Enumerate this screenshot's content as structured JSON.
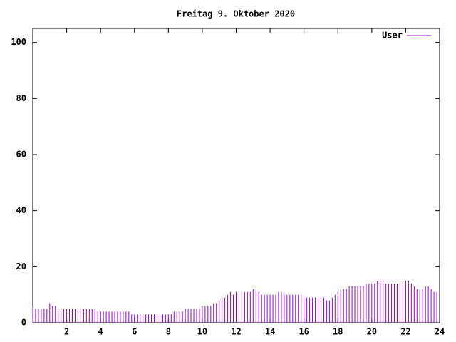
{
  "chart_data": {
    "type": "impulse",
    "title": "Freitag 9. Oktober 2020",
    "x": [
      0,
      0.167,
      0.333,
      0.5,
      0.667,
      0.833,
      1,
      1.167,
      1.333,
      1.5,
      1.667,
      1.833,
      2,
      2.167,
      2.333,
      2.5,
      2.667,
      2.833,
      3,
      3.167,
      3.333,
      3.5,
      3.667,
      3.833,
      4,
      4.167,
      4.333,
      4.5,
      4.667,
      4.833,
      5,
      5.167,
      5.333,
      5.5,
      5.667,
      5.833,
      6,
      6.167,
      6.333,
      6.5,
      6.667,
      6.833,
      7,
      7.167,
      7.333,
      7.5,
      7.667,
      7.833,
      8,
      8.167,
      8.333,
      8.5,
      8.667,
      8.833,
      9,
      9.167,
      9.333,
      9.5,
      9.667,
      9.833,
      10,
      10.167,
      10.333,
      10.5,
      10.667,
      10.833,
      11,
      11.167,
      11.333,
      11.5,
      11.667,
      11.833,
      12,
      12.167,
      12.333,
      12.5,
      12.667,
      12.833,
      13,
      13.167,
      13.333,
      13.5,
      13.667,
      13.833,
      14,
      14.167,
      14.333,
      14.5,
      14.667,
      14.833,
      15,
      15.167,
      15.333,
      15.5,
      15.667,
      15.833,
      16,
      16.167,
      16.333,
      16.5,
      16.667,
      16.833,
      17,
      17.167,
      17.333,
      17.5,
      17.667,
      17.833,
      18,
      18.167,
      18.333,
      18.5,
      18.667,
      18.833,
      19,
      19.167,
      19.333,
      19.5,
      19.667,
      19.833,
      20,
      20.167,
      20.333,
      20.5,
      20.667,
      20.833,
      21,
      21.167,
      21.333,
      21.5,
      21.667,
      21.833,
      22,
      22.167,
      22.333,
      22.5,
      22.667,
      22.833,
      23,
      23.167,
      23.333,
      23.5,
      23.667,
      23.833
    ],
    "series": [
      {
        "name": "User",
        "color": "#9400d3",
        "values": [
          6,
          5,
          5,
          5,
          5,
          5,
          7,
          6,
          6,
          5,
          5,
          5,
          5,
          5,
          5,
          5,
          5,
          5,
          5,
          5,
          5,
          5,
          5,
          4,
          4,
          4,
          4,
          4,
          4,
          4,
          4,
          4,
          4,
          4,
          4,
          3,
          3,
          3,
          3,
          3,
          3,
          3,
          3,
          3,
          3,
          3,
          3,
          3,
          3,
          3,
          4,
          4,
          4,
          4,
          5,
          5,
          5,
          5,
          5,
          5,
          6,
          6,
          6,
          6,
          7,
          7,
          8,
          9,
          9,
          10,
          11,
          10,
          11,
          11,
          11,
          11,
          11,
          11,
          12,
          12,
          11,
          10,
          10,
          10,
          10,
          10,
          10,
          11,
          11,
          10,
          10,
          10,
          10,
          10,
          10,
          10,
          9,
          9,
          9,
          9,
          9,
          9,
          9,
          9,
          8,
          8,
          9,
          10,
          11,
          12,
          12,
          12,
          13,
          13,
          13,
          13,
          13,
          13,
          14,
          14,
          14,
          14,
          15,
          15,
          15,
          14,
          14,
          14,
          14,
          14,
          14,
          15,
          15,
          15,
          14,
          13,
          12,
          12,
          12,
          13,
          13,
          12,
          11,
          11
        ]
      }
    ],
    "xlim": [
      0,
      24
    ],
    "xticks": [
      2,
      4,
      6,
      8,
      10,
      12,
      14,
      16,
      18,
      20,
      22,
      24
    ],
    "ylim": [
      0,
      105
    ],
    "yticks": [
      0,
      20,
      40,
      60,
      80,
      100
    ],
    "legend": "top-right"
  }
}
